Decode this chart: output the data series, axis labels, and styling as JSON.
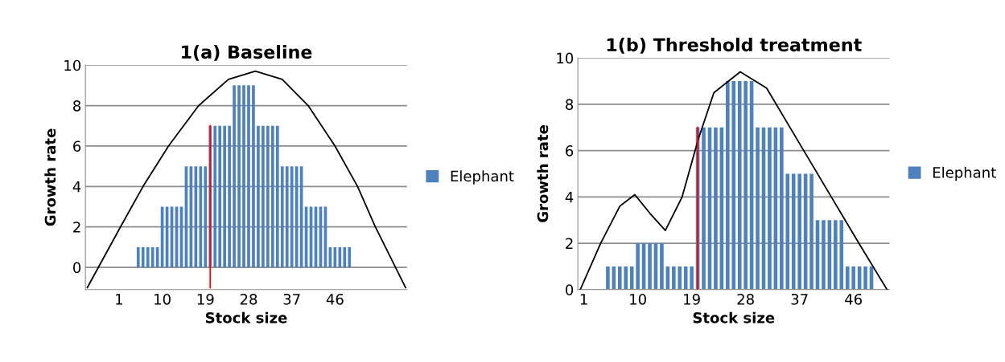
{
  "chart_data": [
    {
      "type": "bar",
      "title": "1(a) Baseline",
      "xlabel": "Stock size",
      "ylabel": "Growth rate",
      "xlim": [
        -6,
        61
      ],
      "xticks": [
        1,
        10,
        19,
        28,
        37,
        46
      ],
      "ylim": [
        -1.1,
        10
      ],
      "yticks": [
        0,
        2,
        4,
        6,
        8,
        10
      ],
      "grid": "y",
      "legend": "right",
      "series": [
        {
          "name": "Elephant",
          "color": "#4f81bd",
          "x": [
            5,
            6,
            7,
            8,
            9,
            10,
            11,
            12,
            13,
            14,
            15,
            16,
            17,
            18,
            19,
            20,
            21,
            22,
            23,
            24,
            25,
            26,
            27,
            28,
            29,
            30,
            31,
            32,
            33,
            34,
            35,
            36,
            37,
            38,
            39,
            40,
            41,
            42,
            43,
            44,
            45,
            46,
            47,
            48,
            49
          ],
          "values": [
            1,
            1,
            1,
            1,
            1,
            3,
            3,
            3,
            3,
            3,
            5,
            5,
            5,
            5,
            5,
            7,
            7,
            7,
            7,
            7,
            9,
            9,
            9,
            9,
            9,
            7,
            7,
            7,
            7,
            7,
            5,
            5,
            5,
            5,
            5,
            3,
            3,
            3,
            3,
            3,
            1,
            1,
            1,
            1,
            1
          ]
        },
        {
          "type": "line",
          "color": "#000000",
          "x": [
            -5.6,
            1.3,
            6,
            11.3,
            17.6,
            23.8,
            29.4,
            35,
            40.4,
            46,
            50.7,
            54.4,
            60.7
          ],
          "values": [
            -1,
            2,
            4,
            6,
            8,
            9.3,
            9.7,
            9.3,
            8,
            6,
            4,
            2,
            -1
          ]
        },
        {
          "type": "line",
          "color": "#ff0000",
          "x": [
            20,
            20
          ],
          "values": [
            -1,
            7
          ]
        }
      ]
    },
    {
      "type": "bar",
      "title": "1(b) Threshold treatment",
      "xlabel": "Stock size",
      "ylabel": "Growth rate",
      "xlim": [
        0,
        52
      ],
      "xticks": [
        1,
        10,
        19,
        28,
        37,
        46
      ],
      "ylim": [
        0,
        10
      ],
      "yticks": [
        0,
        2,
        4,
        6,
        8,
        10
      ],
      "grid": "y",
      "legend": "right",
      "series": [
        {
          "name": "Elephant",
          "color": "#4f81bd",
          "x": [
            5,
            6,
            7,
            8,
            9,
            10,
            11,
            12,
            13,
            14,
            15,
            16,
            17,
            18,
            19,
            20,
            21,
            22,
            23,
            24,
            25,
            26,
            27,
            28,
            29,
            30,
            31,
            32,
            33,
            34,
            35,
            36,
            37,
            38,
            39,
            40,
            41,
            42,
            43,
            44,
            45,
            46,
            47,
            48,
            49
          ],
          "values": [
            1,
            1,
            1,
            1,
            1,
            2,
            2,
            2,
            2,
            2,
            1,
            1,
            1,
            1,
            1,
            7,
            7,
            7,
            7,
            7,
            9,
            9,
            9,
            9,
            9,
            7,
            7,
            7,
            7,
            7,
            5,
            5,
            5,
            5,
            5,
            3,
            3,
            3,
            3,
            3,
            1,
            1,
            1,
            1,
            1
          ]
        },
        {
          "type": "line",
          "color": "#000000",
          "x": [
            0.4,
            3.8,
            7,
            9.5,
            12,
            14.6,
            17.4,
            20.1,
            22.7,
            27.1,
            31.5,
            37.7,
            42.3,
            46.9,
            51.6
          ],
          "values": [
            0,
            2,
            3.6,
            4.1,
            3.3,
            2.55,
            4,
            6.5,
            8.5,
            9.4,
            8.7,
            6,
            4,
            2,
            0
          ]
        },
        {
          "type": "line",
          "color": "#ff0000",
          "x": [
            20,
            20
          ],
          "values": [
            0,
            7
          ]
        }
      ]
    }
  ]
}
